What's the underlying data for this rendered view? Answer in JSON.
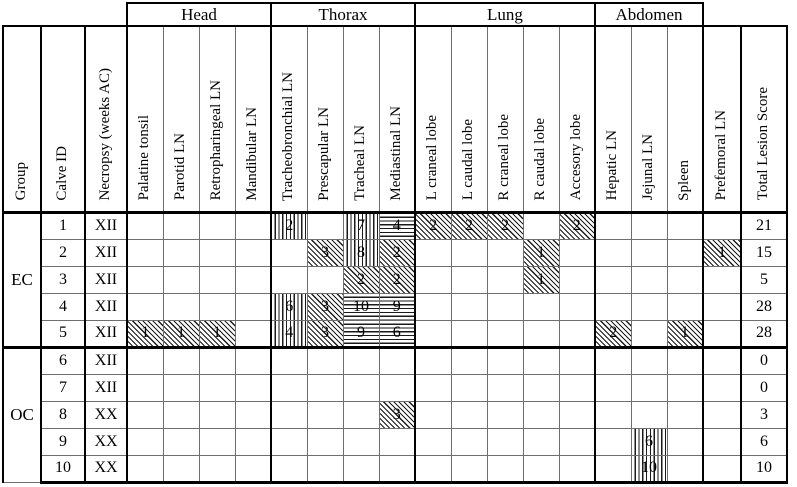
{
  "colors": {
    "thick_border": "#000000",
    "thin_border": "#6e6e6e",
    "background": "#ffffff",
    "hatch": "#1a1a1a"
  },
  "table": {
    "column_groups": [
      {
        "label": "Head",
        "span": 4
      },
      {
        "label": "Thorax",
        "span": 4
      },
      {
        "label": "Lung",
        "span": 5
      },
      {
        "label": "Abdomen",
        "span": 3
      }
    ],
    "left_columns": [
      "Group",
      "Calve ID",
      "Necropsy (weeks AC)"
    ],
    "site_columns": [
      "Palatine tonsil",
      "Parotid LN",
      "Retropharingeal LN",
      "Mandibular LN",
      "Tracheobronchial LN",
      "Prescapular LN",
      "Tracheal LN",
      "Mediastinal LN",
      "L craneal lobe",
      "L caudal lobe",
      "R craneal lobe",
      "R caudal lobe",
      "Accesory lobe",
      "Hepatic LN",
      "Jejunal LN",
      "Spleen",
      "Prefemoral LN"
    ],
    "total_column": "Total Lesion Score",
    "groups": [
      {
        "name": "EC",
        "rows": [
          {
            "id": "1",
            "necropsy": "XII",
            "scores": [
              null,
              null,
              null,
              null,
              {
                "v": "2",
                "p": "vertical"
              },
              null,
              {
                "v": "7",
                "p": "vertical"
              },
              {
                "v": "4",
                "p": "horizontal"
              },
              {
                "v": "2",
                "p": "diagonal"
              },
              {
                "v": "2",
                "p": "diagonal"
              },
              {
                "v": "2",
                "p": "diagonal"
              },
              null,
              {
                "v": "2",
                "p": "diagonal"
              },
              null,
              null,
              null,
              null
            ],
            "total": "21"
          },
          {
            "id": "2",
            "necropsy": "XII",
            "scores": [
              null,
              null,
              null,
              null,
              null,
              {
                "v": "3",
                "p": "diagonal"
              },
              {
                "v": "8",
                "p": "vertical"
              },
              {
                "v": "2",
                "p": "diagonal"
              },
              null,
              null,
              null,
              {
                "v": "1",
                "p": "diagonal"
              },
              null,
              null,
              null,
              null,
              {
                "v": "1",
                "p": "diagonal"
              }
            ],
            "total": "15"
          },
          {
            "id": "3",
            "necropsy": "XII",
            "scores": [
              null,
              null,
              null,
              null,
              null,
              null,
              {
                "v": "2",
                "p": "diagonal"
              },
              {
                "v": "2",
                "p": "diagonal"
              },
              null,
              null,
              null,
              {
                "v": "1",
                "p": "diagonal"
              },
              null,
              null,
              null,
              null,
              null
            ],
            "total": "5"
          },
          {
            "id": "4",
            "necropsy": "XII",
            "scores": [
              null,
              null,
              null,
              null,
              {
                "v": "6",
                "p": "vertical"
              },
              {
                "v": "3",
                "p": "diagonal"
              },
              {
                "v": "10",
                "p": "horizontal"
              },
              {
                "v": "9",
                "p": "horizontal"
              },
              null,
              null,
              null,
              null,
              null,
              null,
              null,
              null,
              null
            ],
            "total": "28"
          },
          {
            "id": "5",
            "necropsy": "XII",
            "scores": [
              {
                "v": "1",
                "p": "diagonal"
              },
              {
                "v": "1",
                "p": "diagonal"
              },
              {
                "v": "1",
                "p": "diagonal"
              },
              null,
              {
                "v": "4",
                "p": "vertical"
              },
              {
                "v": "3",
                "p": "diagonal"
              },
              {
                "v": "9",
                "p": "horizontal"
              },
              {
                "v": "6",
                "p": "horizontal"
              },
              null,
              null,
              null,
              null,
              null,
              {
                "v": "2",
                "p": "diagonal"
              },
              null,
              {
                "v": "1",
                "p": "diagonal"
              },
              null
            ],
            "total": "28"
          }
        ]
      },
      {
        "name": "OC",
        "rows": [
          {
            "id": "6",
            "necropsy": "XII",
            "scores": [
              null,
              null,
              null,
              null,
              null,
              null,
              null,
              null,
              null,
              null,
              null,
              null,
              null,
              null,
              null,
              null,
              null
            ],
            "total": "0"
          },
          {
            "id": "7",
            "necropsy": "XII",
            "scores": [
              null,
              null,
              null,
              null,
              null,
              null,
              null,
              null,
              null,
              null,
              null,
              null,
              null,
              null,
              null,
              null,
              null
            ],
            "total": "0"
          },
          {
            "id": "8",
            "necropsy": "XX",
            "scores": [
              null,
              null,
              null,
              null,
              null,
              null,
              null,
              {
                "v": "3",
                "p": "diagonal"
              },
              null,
              null,
              null,
              null,
              null,
              null,
              null,
              null,
              null
            ],
            "total": "3"
          },
          {
            "id": "9",
            "necropsy": "XX",
            "scores": [
              null,
              null,
              null,
              null,
              null,
              null,
              null,
              null,
              null,
              null,
              null,
              null,
              null,
              null,
              {
                "v": "6",
                "p": "vertical"
              },
              null,
              null
            ],
            "total": "6"
          },
          {
            "id": "10",
            "necropsy": "XX",
            "scores": [
              null,
              null,
              null,
              null,
              null,
              null,
              null,
              null,
              null,
              null,
              null,
              null,
              null,
              null,
              {
                "v": "10",
                "p": "vertical"
              },
              null,
              null
            ],
            "total": "10"
          }
        ]
      }
    ]
  }
}
